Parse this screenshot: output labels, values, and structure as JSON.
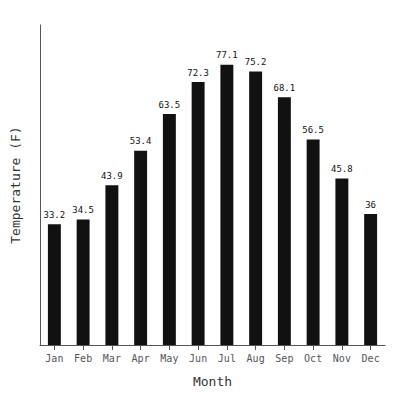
{
  "chart_data": {
    "type": "bar",
    "categories": [
      "Jan",
      "Feb",
      "Mar",
      "Apr",
      "May",
      "Jun",
      "Jul",
      "Aug",
      "Sep",
      "Oct",
      "Nov",
      "Dec"
    ],
    "values": [
      33.2,
      34.5,
      43.9,
      53.4,
      63.5,
      72.3,
      77.1,
      75.2,
      68.1,
      56.5,
      45.8,
      36.0
    ],
    "color": "#111111",
    "xlabel": "Month",
    "ylabel": "Temperature (F)",
    "ylim": [
      0,
      88
    ],
    "grid": false,
    "data_labels": true,
    "tick_labels": "x"
  }
}
